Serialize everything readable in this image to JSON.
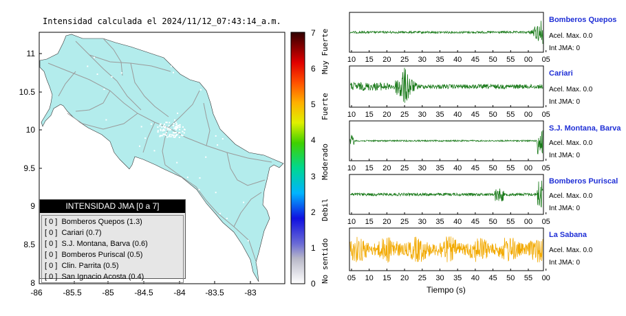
{
  "map": {
    "title": "Intensidad calculada el 2024/11/12_07:43:14_a.m.",
    "x_ticks": [
      "-86",
      "-85.5",
      "-85",
      "-84.5",
      "-84",
      "-83.5",
      "-83"
    ],
    "y_ticks": [
      "11",
      "10.5",
      "10",
      "9.5",
      "9",
      "8.5",
      "8"
    ],
    "land_color": "#b3ecec",
    "road_color": "#9a9a9a"
  },
  "colorbar": {
    "ticks": [
      "0",
      "1",
      "2",
      "3",
      "4",
      "5",
      "6",
      "7"
    ],
    "labels": [
      "No sentido",
      "Debil",
      "Moderado",
      "Fuerte",
      "Muy Fuerte"
    ]
  },
  "legend": {
    "title": "INTENSIDAD JMA [0 a 7]",
    "rows": [
      "[ 0 ]  Bomberos Quepos (1.3)",
      "[ 0 ]  Cariari (0.7)",
      "[ 0 ]  S.J. Montana, Barva (0.6)",
      "[ 0 ]  Bomberos Puriscal (0.5)",
      "[ 0 ]  Clin. Parrita (0.5)",
      "[ 0 ]  San Ignacio Acosta (0.4)"
    ]
  },
  "stations": [
    {
      "name": "Bomberos Quepos",
      "acel": "Acel. Max. 0.0",
      "int": "Int JMA: 0",
      "color": "#1a7a1a",
      "ticks": [
        "10",
        "15",
        "20",
        "25",
        "30",
        "35",
        "40",
        "45",
        "50",
        "55",
        "00",
        "05"
      ]
    },
    {
      "name": "Cariari",
      "acel": "Acel. Max. 0.0",
      "int": "Int JMA: 0",
      "color": "#1a7a1a",
      "ticks": [
        "10",
        "15",
        "20",
        "25",
        "30",
        "35",
        "40",
        "45",
        "50",
        "55",
        "00",
        "05"
      ]
    },
    {
      "name": "S.J. Montana, Barva",
      "acel": "Acel. Max. 0.0",
      "int": "Int JMA: 0",
      "color": "#1a7a1a",
      "ticks": [
        "10",
        "15",
        "20",
        "25",
        "30",
        "35",
        "40",
        "45",
        "50",
        "55",
        "00",
        "05"
      ]
    },
    {
      "name": "Bomberos Puriscal",
      "acel": "Acel. Max. 0.0",
      "int": "Int JMA: 0",
      "color": "#1a7a1a",
      "ticks": [
        "10",
        "15",
        "20",
        "25",
        "30",
        "35",
        "40",
        "45",
        "50",
        "55",
        "00",
        "05"
      ]
    },
    {
      "name": "La Sabana",
      "acel": "Acel. Max. 0.0",
      "int": "Int JMA: 0",
      "color": "#f2a900",
      "ticks": [
        "05",
        "10",
        "15",
        "20",
        "25",
        "30",
        "35",
        "40",
        "45",
        "50",
        "55",
        "00"
      ]
    }
  ],
  "xlabel": "Tiempo (s)",
  "chart_data": [
    {
      "type": "heatmap",
      "title": "Intensidad calculada el 2024/11/12_07:43:14_a.m.",
      "xlim": [
        -86,
        -82.5
      ],
      "ylim": [
        8,
        11.3
      ],
      "colorbar_range": [
        0,
        7
      ]
    },
    {
      "type": "line",
      "xlabel": "Tiempo (s)",
      "series": [
        {
          "name": "Bomberos Quepos",
          "acel_max": 0.0,
          "int_jma": 0
        },
        {
          "name": "Cariari",
          "acel_max": 0.0,
          "int_jma": 0
        },
        {
          "name": "S.J. Montana, Barva",
          "acel_max": 0.0,
          "int_jma": 0
        },
        {
          "name": "Bomberos Puriscal",
          "acel_max": 0.0,
          "int_jma": 0
        },
        {
          "name": "La Sabana",
          "acel_max": 0.0,
          "int_jma": 0
        }
      ]
    }
  ]
}
